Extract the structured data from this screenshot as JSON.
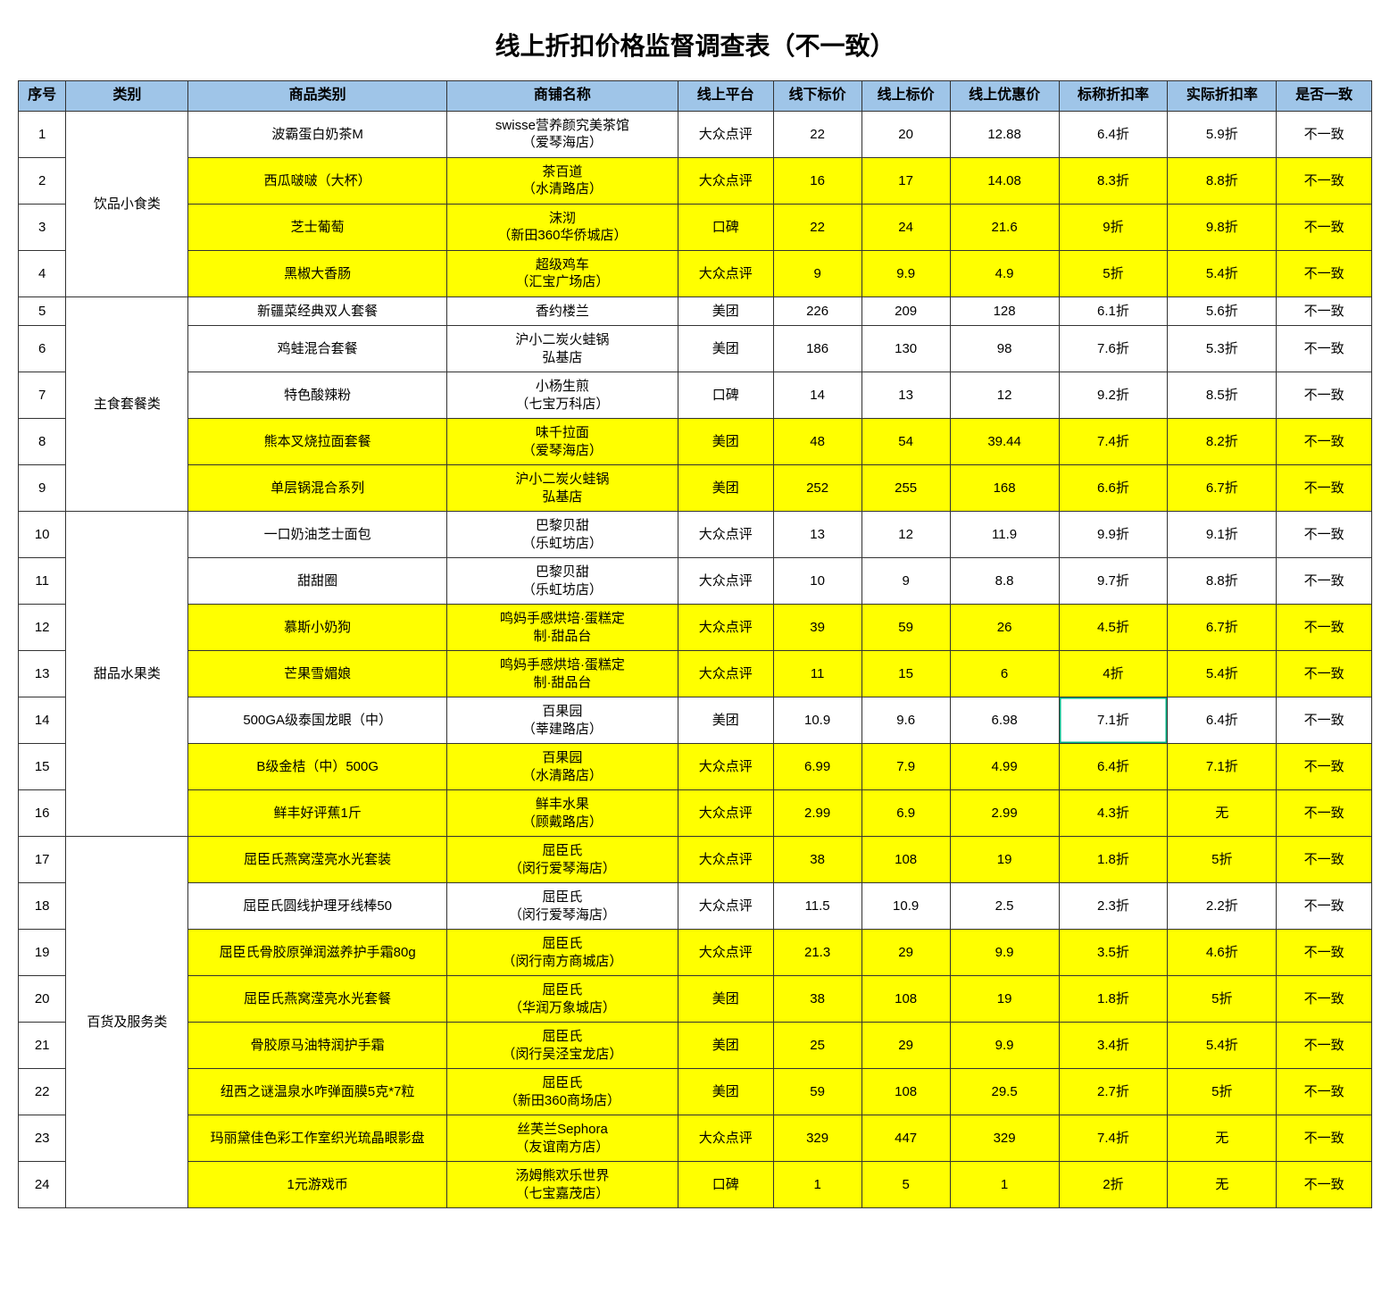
{
  "title": "线上折扣价格监督调查表（不一致）",
  "columns": [
    "序号",
    "类别",
    "商品类别",
    "商铺名称",
    "线上平台",
    "线下标价",
    "线上标价",
    "线上优惠价",
    "标称折扣率",
    "实际折扣率",
    "是否一致"
  ],
  "colors": {
    "header_bg": "#9fc5e8",
    "highlight_bg": "#ffff00",
    "border": "#333333",
    "special_cell_border": "#00b386",
    "background": "#ffffff",
    "text": "#000000"
  },
  "font": {
    "family": "Microsoft YaHei / SimSun",
    "title_size_pt": 28,
    "header_size_pt": 16,
    "cell_size_pt": 15
  },
  "col_widths_pct": [
    3.5,
    9,
    19,
    17,
    7,
    6.5,
    6.5,
    8,
    8,
    8,
    7
  ],
  "categories": [
    {
      "name": "饮品小食类",
      "rows": [
        {
          "idx": 1,
          "product": "波霸蛋白奶茶M",
          "shop": "swisse营养颜究美茶馆\n（爱琴海店）",
          "platform": "大众点评",
          "offline": "22",
          "online": "20",
          "promo": "12.88",
          "nominal": "6.4折",
          "actual": "5.9折",
          "match": "不一致",
          "hl": false
        },
        {
          "idx": 2,
          "product": "西瓜啵啵（大杯）",
          "shop": "茶百道\n（水清路店）",
          "platform": "大众点评",
          "offline": "16",
          "online": "17",
          "promo": "14.08",
          "nominal": "8.3折",
          "actual": "8.8折",
          "match": "不一致",
          "hl": true
        },
        {
          "idx": 3,
          "product": "芝士葡萄",
          "shop": "沫沏\n（新田360华侨城店）",
          "platform": "口碑",
          "offline": "22",
          "online": "24",
          "promo": "21.6",
          "nominal": "9折",
          "actual": "9.8折",
          "match": "不一致",
          "hl": true
        },
        {
          "idx": 4,
          "product": "黑椒大香肠",
          "shop": "超级鸡车\n（汇宝广场店）",
          "platform": "大众点评",
          "offline": "9",
          "online": "9.9",
          "promo": "4.9",
          "nominal": "5折",
          "actual": "5.4折",
          "match": "不一致",
          "hl": true
        }
      ]
    },
    {
      "name": "主食套餐类",
      "rows": [
        {
          "idx": 5,
          "product": "新疆菜经典双人套餐",
          "shop": "香约楼兰",
          "platform": "美团",
          "offline": "226",
          "online": "209",
          "promo": "128",
          "nominal": "6.1折",
          "actual": "5.6折",
          "match": "不一致",
          "hl": false
        },
        {
          "idx": 6,
          "product": "鸡蛙混合套餐",
          "shop": "沪小二炭火蛙锅\n弘基店",
          "platform": "美团",
          "offline": "186",
          "online": "130",
          "promo": "98",
          "nominal": "7.6折",
          "actual": "5.3折",
          "match": "不一致",
          "hl": false
        },
        {
          "idx": 7,
          "product": "特色酸辣粉",
          "shop": "小杨生煎\n（七宝万科店）",
          "platform": "口碑",
          "offline": "14",
          "online": "13",
          "promo": "12",
          "nominal": "9.2折",
          "actual": "8.5折",
          "match": "不一致",
          "hl": false
        },
        {
          "idx": 8,
          "product": "熊本叉烧拉面套餐",
          "shop": "味千拉面\n（爱琴海店）",
          "platform": "美团",
          "offline": "48",
          "online": "54",
          "promo": "39.44",
          "nominal": "7.4折",
          "actual": "8.2折",
          "match": "不一致",
          "hl": true
        },
        {
          "idx": 9,
          "product": "单层锅混合系列",
          "shop": "沪小二炭火蛙锅\n弘基店",
          "platform": "美团",
          "offline": "252",
          "online": "255",
          "promo": "168",
          "nominal": "6.6折",
          "actual": "6.7折",
          "match": "不一致",
          "hl": true
        }
      ]
    },
    {
      "name": "甜品水果类",
      "rows": [
        {
          "idx": 10,
          "product": "一口奶油芝士面包",
          "shop": "巴黎贝甜\n（乐虹坊店）",
          "platform": "大众点评",
          "offline": "13",
          "online": "12",
          "promo": "11.9",
          "nominal": "9.9折",
          "actual": "9.1折",
          "match": "不一致",
          "hl": false
        },
        {
          "idx": 11,
          "product": "甜甜圈",
          "shop": "巴黎贝甜\n（乐虹坊店）",
          "platform": "大众点评",
          "offline": "10",
          "online": "9",
          "promo": "8.8",
          "nominal": "9.7折",
          "actual": "8.8折",
          "match": "不一致",
          "hl": false
        },
        {
          "idx": 12,
          "product": "慕斯小奶狗",
          "shop": "鸣妈手感烘培·蛋糕定\n制·甜品台",
          "platform": "大众点评",
          "offline": "39",
          "online": "59",
          "promo": "26",
          "nominal": "4.5折",
          "actual": "6.7折",
          "match": "不一致",
          "hl": true
        },
        {
          "idx": 13,
          "product": "芒果雪媚娘",
          "shop": "鸣妈手感烘培·蛋糕定\n制·甜品台",
          "platform": "大众点评",
          "offline": "11",
          "online": "15",
          "promo": "6",
          "nominal": "4折",
          "actual": "5.4折",
          "match": "不一致",
          "hl": true
        },
        {
          "idx": 14,
          "product": "500GA级泰国龙眼（中）",
          "shop": "百果园\n（莘建路店）",
          "platform": "美团",
          "offline": "10.9",
          "online": "9.6",
          "promo": "6.98",
          "nominal": "7.1折",
          "actual": "6.4折",
          "match": "不一致",
          "hl": false,
          "special_nominal": true
        },
        {
          "idx": 15,
          "product": "B级金桔（中）500G",
          "shop": "百果园\n（水清路店）",
          "platform": "大众点评",
          "offline": "6.99",
          "online": "7.9",
          "promo": "4.99",
          "nominal": "6.4折",
          "actual": "7.1折",
          "match": "不一致",
          "hl": true
        },
        {
          "idx": 16,
          "product": "鲜丰好评蕉1斤",
          "shop": "鲜丰水果\n（顾戴路店）",
          "platform": "大众点评",
          "offline": "2.99",
          "online": "6.9",
          "promo": "2.99",
          "nominal": "4.3折",
          "actual": "无",
          "match": "不一致",
          "hl": true
        }
      ]
    },
    {
      "name": "百货及服务类",
      "rows": [
        {
          "idx": 17,
          "product": "屈臣氏燕窝滢亮水光套装",
          "shop": "屈臣氏\n（闵行爱琴海店）",
          "platform": "大众点评",
          "offline": "38",
          "online": "108",
          "promo": "19",
          "nominal": "1.8折",
          "actual": "5折",
          "match": "不一致",
          "hl": true
        },
        {
          "idx": 18,
          "product": "屈臣氏圆线护理牙线棒50",
          "shop": "屈臣氏\n（闵行爱琴海店）",
          "platform": "大众点评",
          "offline": "11.5",
          "online": "10.9",
          "promo": "2.5",
          "nominal": "2.3折",
          "actual": "2.2折",
          "match": "不一致",
          "hl": false
        },
        {
          "idx": 19,
          "product": "屈臣氏骨胶原弹润滋养护手霜80g",
          "shop": "屈臣氏\n（闵行南方商城店）",
          "platform": "大众点评",
          "offline": "21.3",
          "online": "29",
          "promo": "9.9",
          "nominal": "3.5折",
          "actual": "4.6折",
          "match": "不一致",
          "hl": true
        },
        {
          "idx": 20,
          "product": "屈臣氏燕窝滢亮水光套餐",
          "shop": "屈臣氏\n（华润万象城店）",
          "platform": "美团",
          "offline": "38",
          "online": "108",
          "promo": "19",
          "nominal": "1.8折",
          "actual": "5折",
          "match": "不一致",
          "hl": true
        },
        {
          "idx": 21,
          "product": "骨胶原马油特润护手霜",
          "shop": "屈臣氏\n（闵行吴泾宝龙店）",
          "platform": "美团",
          "offline": "25",
          "online": "29",
          "promo": "9.9",
          "nominal": "3.4折",
          "actual": "5.4折",
          "match": "不一致",
          "hl": true
        },
        {
          "idx": 22,
          "product": "纽西之谜温泉水咋弹面膜5克*7粒",
          "shop": "屈臣氏\n（新田360商场店）",
          "platform": "美团",
          "offline": "59",
          "online": "108",
          "promo": "29.5",
          "nominal": "2.7折",
          "actual": "5折",
          "match": "不一致",
          "hl": true
        },
        {
          "idx": 23,
          "product": "玛丽黛佳色彩工作室织光琉晶眼影盘",
          "shop": "丝芙兰Sephora\n（友谊南方店）",
          "platform": "大众点评",
          "offline": "329",
          "online": "447",
          "promo": "329",
          "nominal": "7.4折",
          "actual": "无",
          "match": "不一致",
          "hl": true
        },
        {
          "idx": 24,
          "product": "1元游戏币",
          "shop": "汤姆熊欢乐世界\n（七宝嘉茂店）",
          "platform": "口碑",
          "offline": "1",
          "online": "5",
          "promo": "1",
          "nominal": "2折",
          "actual": "无",
          "match": "不一致",
          "hl": true
        }
      ]
    }
  ]
}
